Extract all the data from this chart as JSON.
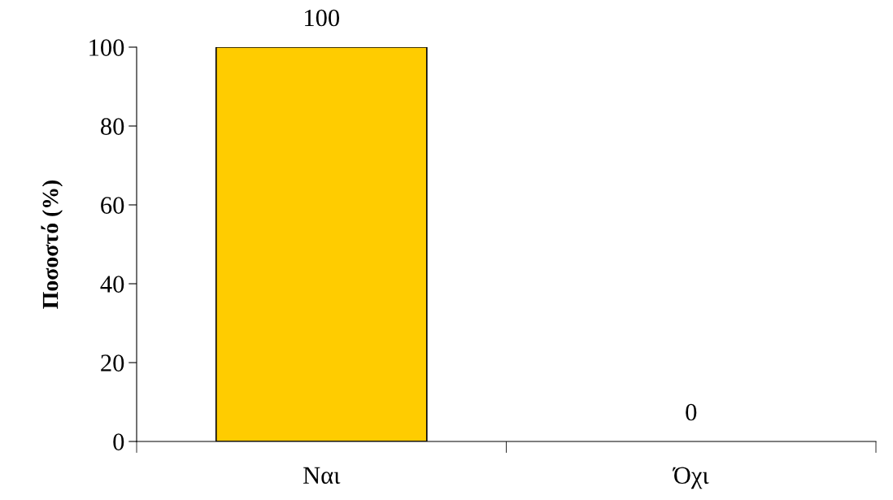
{
  "chart_data": {
    "type": "bar",
    "ylabel": "Ποσοστό (%)",
    "categories": [
      "Ναι",
      "Όχι"
    ],
    "values": [
      100,
      0
    ],
    "color": "#ffcc00",
    "ylim": [
      0,
      100
    ],
    "yticks": [
      0,
      20,
      40,
      60,
      80,
      100
    ],
    "grid": false,
    "data_labels": true
  }
}
